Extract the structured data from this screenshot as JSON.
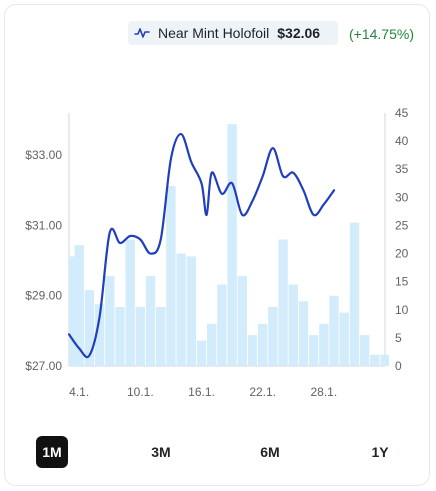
{
  "header": {
    "variant": "Near Mint Holofoil",
    "price": "$32.06",
    "change": "(+14.75%)",
    "icon": "line-chart-icon"
  },
  "ranges": [
    {
      "label": "1M",
      "active": true
    },
    {
      "label": "3M",
      "active": false
    },
    {
      "label": "6M",
      "active": false
    },
    {
      "label": "1Y",
      "active": false
    }
  ],
  "colors": {
    "line": "#1f3fbf",
    "bar": "#d3ecfb",
    "change": "#22863a",
    "active_range_bg": "#111111"
  },
  "chart_data": {
    "type": "bar+line",
    "left_axis": {
      "ticks": [
        "$27.00",
        "$29.00",
        "$31.00",
        "$33.00"
      ],
      "values": [
        27,
        29,
        31,
        33
      ],
      "range": [
        27,
        34.2
      ]
    },
    "right_axis": {
      "ticks": [
        "0",
        "5",
        "10",
        "15",
        "20",
        "25",
        "30",
        "35",
        "40",
        "45"
      ],
      "range": [
        0,
        45
      ]
    },
    "x_ticks": [
      {
        "label": "4.1.",
        "day": 4
      },
      {
        "label": "10.1.",
        "day": 10
      },
      {
        "label": "16.1.",
        "day": 16
      },
      {
        "label": "22.1.",
        "day": 22
      },
      {
        "label": "28.1.",
        "day": 28
      }
    ],
    "x_range": [
      3,
      34
    ],
    "bars": {
      "days": [
        3,
        4,
        5,
        6,
        7,
        8,
        9,
        10,
        11,
        12,
        13,
        14,
        15,
        16,
        17,
        18,
        19,
        20,
        21,
        22,
        23,
        24,
        25,
        26,
        27,
        28,
        29,
        30,
        31,
        32,
        33,
        34
      ],
      "values": [
        19.5,
        21.5,
        13.5,
        11,
        16,
        10.5,
        22.5,
        10.5,
        16,
        10.5,
        32,
        20,
        19.5,
        4.5,
        7.5,
        14.5,
        43,
        16,
        5.5,
        7.5,
        10.5,
        22.5,
        14.5,
        11.5,
        5.5,
        7.5,
        12.5,
        9.5,
        25.5,
        5.5,
        2,
        2
      ]
    },
    "line": {
      "points": [
        [
          3.0,
          27.9
        ],
        [
          4.0,
          27.5
        ],
        [
          5.0,
          27.3
        ],
        [
          6.0,
          28.4
        ],
        [
          7.0,
          30.8
        ],
        [
          8.0,
          30.5
        ],
        [
          9.0,
          30.7
        ],
        [
          10.0,
          30.6
        ],
        [
          11.0,
          30.2
        ],
        [
          12.0,
          30.6
        ],
        [
          13.0,
          32.9
        ],
        [
          14.0,
          33.6
        ],
        [
          15.0,
          32.8
        ],
        [
          16.0,
          32.2
        ],
        [
          16.5,
          31.3
        ],
        [
          17.0,
          32.5
        ],
        [
          18.0,
          31.9
        ],
        [
          19.0,
          32.2
        ],
        [
          20.0,
          31.3
        ],
        [
          21.0,
          31.7
        ],
        [
          22.0,
          32.4
        ],
        [
          23.0,
          33.2
        ],
        [
          24.0,
          32.4
        ],
        [
          25.0,
          32.5
        ],
        [
          26.0,
          32.0
        ],
        [
          27.0,
          31.3
        ],
        [
          28.0,
          31.6
        ],
        [
          29.0,
          32.0
        ]
      ]
    }
  }
}
